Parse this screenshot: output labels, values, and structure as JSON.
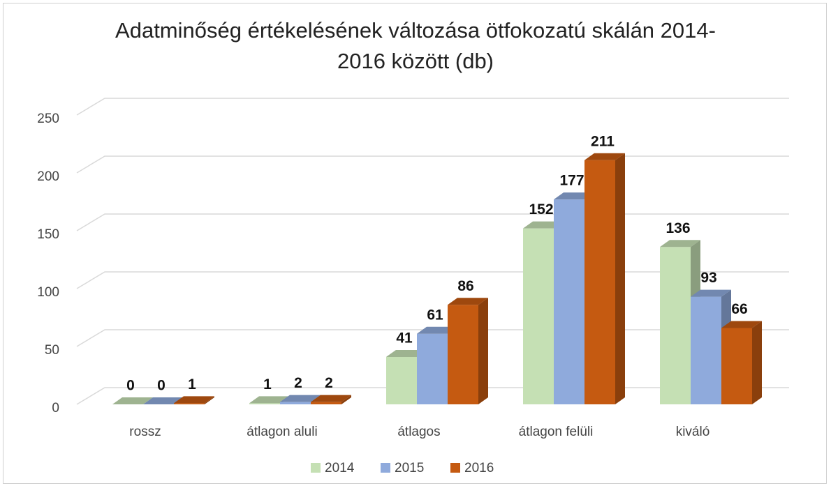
{
  "chart_data": {
    "type": "bar3d",
    "title": "Adatminőség értékelésének változása ötfokozatú skálán 2014-2016 között (db)",
    "categories": [
      "rossz",
      "átlagon aluli",
      "átlagos",
      "átlagon felüli",
      "kiváló"
    ],
    "series": [
      {
        "name": "2014",
        "color": "#c5e0b4",
        "values": [
          0,
          1,
          41,
          152,
          136
        ]
      },
      {
        "name": "2015",
        "color": "#8faadc",
        "values": [
          0,
          2,
          61,
          177,
          93
        ]
      },
      {
        "name": "2016",
        "color": "#c55a11",
        "values": [
          1,
          2,
          86,
          211,
          66
        ]
      }
    ],
    "ylim": [
      0,
      250
    ],
    "yticks": [
      0,
      50,
      100,
      150,
      200,
      250
    ],
    "grid": true,
    "legend": "bottom"
  }
}
